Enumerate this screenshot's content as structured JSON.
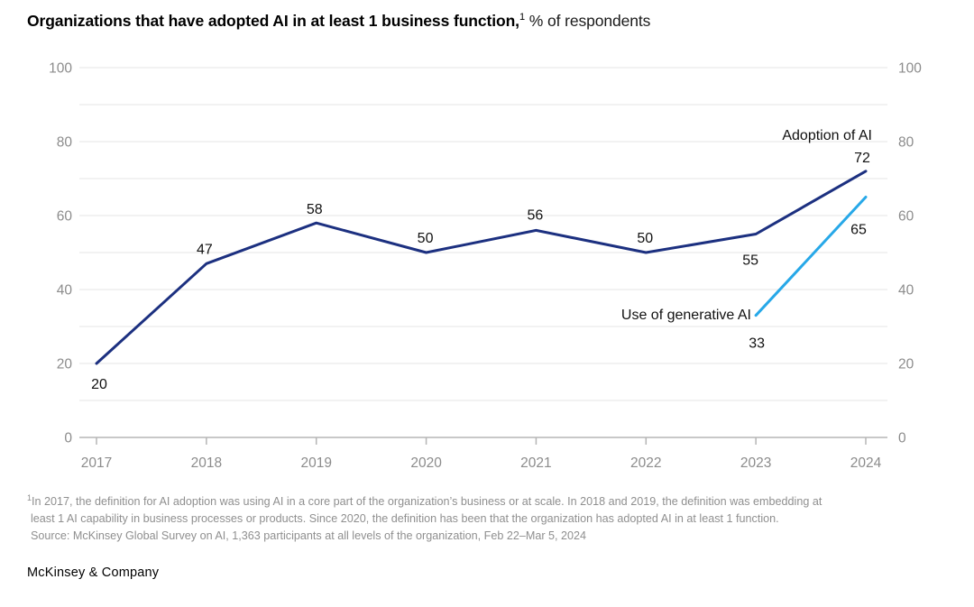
{
  "header": {
    "title_bold": "Organizations that have adopted AI in at least 1 business function,",
    "title_sup": "1",
    "title_regular": " % of respondents"
  },
  "footnote": {
    "sup": "1",
    "line1": "In 2017, the definition for AI adoption was using AI in a core part of the organization’s business or at scale. In 2018 and 2019, the definition was embedding at",
    "line2": "least 1 AI capability in business processes or products. Since 2020, the definition has been that the organization has adopted AI in at least 1 function.",
    "line3": "Source: McKinsey Global Survey on AI, 1,363 participants at all levels of the organization, Feb 22–Mar 5, 2024"
  },
  "brand": "McKinsey & Company",
  "colors": {
    "adoption_line": "#1c3080",
    "genai_line": "#27a8e8",
    "gridline": "#e4e4e4",
    "axis_line": "#b5b5b5",
    "tick_text": "#8c8c8c",
    "data_label_text": "#111111",
    "footnote_text": "#8f8f8f",
    "title_text": "#000000"
  },
  "chart_data": {
    "type": "line",
    "title": "Organizations that have adopted AI in at least 1 business function, % of respondents",
    "xlabel": "",
    "ylabel": "% of respondents",
    "x": [
      2017,
      2018,
      2019,
      2020,
      2021,
      2022,
      2023,
      2024
    ],
    "ylim": [
      0,
      100
    ],
    "yticks": [
      0,
      20,
      40,
      60,
      80,
      100
    ],
    "grid_step": 10,
    "grid": true,
    "legend_position": "inline-labels",
    "series": [
      {
        "name": "Adoption of AI",
        "color": "#1c3080",
        "x": [
          2017,
          2018,
          2019,
          2020,
          2021,
          2022,
          2023,
          2024
        ],
        "values": [
          20,
          47,
          58,
          50,
          56,
          50,
          55,
          72
        ],
        "label_dx": [
          3,
          -2,
          -2,
          -1,
          -1,
          -1,
          -6,
          -4
        ],
        "label_dy": [
          28,
          -11,
          -10,
          -11,
          -12,
          -11,
          34,
          -10
        ],
        "name_label": {
          "x": 967,
          "y": 95,
          "anchor": "end"
        }
      },
      {
        "name": "Use of generative AI",
        "color": "#27a8e8",
        "x": [
          2023,
          2024
        ],
        "values": [
          33,
          65
        ],
        "label_dx": [
          1,
          -8
        ],
        "label_dy": [
          36,
          41
        ],
        "name_label": {
          "x": 833,
          "y": 294,
          "anchor": "end"
        }
      }
    ]
  }
}
